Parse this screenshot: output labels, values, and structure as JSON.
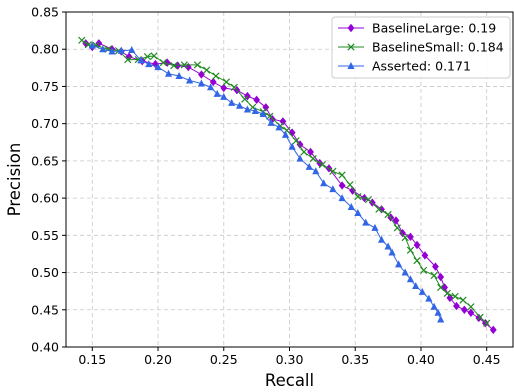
{
  "chart_data": {
    "type": "line",
    "title": "",
    "xlabel": "Recall",
    "ylabel": "Precision",
    "xlim": [
      0.13,
      0.47
    ],
    "ylim": [
      0.4,
      0.85
    ],
    "x_ticks": [
      0.15,
      0.2,
      0.25,
      0.3,
      0.35,
      0.4,
      0.45
    ],
    "x_tick_labels": [
      "0.15",
      "0.20",
      "0.25",
      "0.30",
      "0.35",
      "0.40",
      "0.45"
    ],
    "y_ticks": [
      0.4,
      0.45,
      0.5,
      0.55,
      0.6,
      0.65,
      0.7,
      0.75,
      0.8,
      0.85
    ],
    "y_tick_labels": [
      "0.40",
      "0.45",
      "0.50",
      "0.55",
      "0.60",
      "0.65",
      "0.70",
      "0.75",
      "0.80",
      "0.85"
    ],
    "grid": true,
    "legend_position": "top-right",
    "series": [
      {
        "name": "BaselineLarge: 0.19",
        "color": "#9400D3",
        "marker": "diamond",
        "points": [
          [
            0.145,
            0.808
          ],
          [
            0.15,
            0.803
          ],
          [
            0.155,
            0.808
          ],
          [
            0.165,
            0.8
          ],
          [
            0.172,
            0.797
          ],
          [
            0.178,
            0.79
          ],
          [
            0.188,
            0.784
          ],
          [
            0.198,
            0.78
          ],
          [
            0.207,
            0.782
          ],
          [
            0.215,
            0.778
          ],
          [
            0.223,
            0.776
          ],
          [
            0.233,
            0.766
          ],
          [
            0.242,
            0.756
          ],
          [
            0.25,
            0.748
          ],
          [
            0.26,
            0.745
          ],
          [
            0.268,
            0.737
          ],
          [
            0.275,
            0.732
          ],
          [
            0.282,
            0.722
          ],
          [
            0.287,
            0.706
          ],
          [
            0.295,
            0.703
          ],
          [
            0.302,
            0.688
          ],
          [
            0.308,
            0.672
          ],
          [
            0.316,
            0.662
          ],
          [
            0.323,
            0.647
          ],
          [
            0.33,
            0.64
          ],
          [
            0.34,
            0.617
          ],
          [
            0.348,
            0.61
          ],
          [
            0.357,
            0.6
          ],
          [
            0.363,
            0.594
          ],
          [
            0.37,
            0.585
          ],
          [
            0.377,
            0.574
          ],
          [
            0.381,
            0.57
          ],
          [
            0.386,
            0.553
          ],
          [
            0.392,
            0.548
          ],
          [
            0.397,
            0.537
          ],
          [
            0.403,
            0.523
          ],
          [
            0.411,
            0.508
          ],
          [
            0.415,
            0.494
          ],
          [
            0.418,
            0.48
          ],
          [
            0.422,
            0.466
          ],
          [
            0.427,
            0.455
          ],
          [
            0.433,
            0.45
          ],
          [
            0.438,
            0.446
          ],
          [
            0.444,
            0.439
          ],
          [
            0.449,
            0.432
          ],
          [
            0.455,
            0.423
          ]
        ]
      },
      {
        "name": "BaselineSmall: 0.184",
        "color": "#228B22",
        "marker": "x",
        "points": [
          [
            0.142,
            0.812
          ],
          [
            0.147,
            0.806
          ],
          [
            0.153,
            0.805
          ],
          [
            0.162,
            0.8
          ],
          [
            0.17,
            0.798
          ],
          [
            0.177,
            0.786
          ],
          [
            0.185,
            0.786
          ],
          [
            0.192,
            0.79
          ],
          [
            0.197,
            0.791
          ],
          [
            0.204,
            0.782
          ],
          [
            0.212,
            0.778
          ],
          [
            0.22,
            0.779
          ],
          [
            0.23,
            0.779
          ],
          [
            0.237,
            0.772
          ],
          [
            0.244,
            0.764
          ],
          [
            0.252,
            0.756
          ],
          [
            0.258,
            0.749
          ],
          [
            0.266,
            0.733
          ],
          [
            0.272,
            0.722
          ],
          [
            0.28,
            0.716
          ],
          [
            0.285,
            0.71
          ],
          [
            0.293,
            0.697
          ],
          [
            0.298,
            0.691
          ],
          [
            0.305,
            0.677
          ],
          [
            0.311,
            0.662
          ],
          [
            0.318,
            0.653
          ],
          [
            0.325,
            0.645
          ],
          [
            0.333,
            0.636
          ],
          [
            0.34,
            0.631
          ],
          [
            0.346,
            0.618
          ],
          [
            0.352,
            0.602
          ],
          [
            0.36,
            0.598
          ],
          [
            0.368,
            0.585
          ],
          [
            0.375,
            0.578
          ],
          [
            0.382,
            0.56
          ],
          [
            0.388,
            0.547
          ],
          [
            0.392,
            0.53
          ],
          [
            0.397,
            0.516
          ],
          [
            0.402,
            0.503
          ],
          [
            0.41,
            0.496
          ],
          [
            0.415,
            0.48
          ],
          [
            0.42,
            0.472
          ],
          [
            0.426,
            0.468
          ],
          [
            0.432,
            0.463
          ],
          [
            0.438,
            0.454
          ],
          [
            0.445,
            0.44
          ],
          [
            0.45,
            0.432
          ]
        ]
      },
      {
        "name": "Asserted: 0.171",
        "color": "#3366E6",
        "marker": "triangle",
        "points": [
          [
            0.15,
            0.805
          ],
          [
            0.158,
            0.8
          ],
          [
            0.165,
            0.797
          ],
          [
            0.172,
            0.798
          ],
          [
            0.18,
            0.799
          ],
          [
            0.187,
            0.785
          ],
          [
            0.193,
            0.78
          ],
          [
            0.2,
            0.776
          ],
          [
            0.208,
            0.767
          ],
          [
            0.216,
            0.764
          ],
          [
            0.224,
            0.758
          ],
          [
            0.233,
            0.754
          ],
          [
            0.24,
            0.749
          ],
          [
            0.245,
            0.74
          ],
          [
            0.25,
            0.736
          ],
          [
            0.256,
            0.728
          ],
          [
            0.262,
            0.724
          ],
          [
            0.268,
            0.719
          ],
          [
            0.274,
            0.717
          ],
          [
            0.28,
            0.713
          ],
          [
            0.286,
            0.701
          ],
          [
            0.292,
            0.695
          ],
          [
            0.297,
            0.685
          ],
          [
            0.302,
            0.669
          ],
          [
            0.308,
            0.653
          ],
          [
            0.315,
            0.642
          ],
          [
            0.32,
            0.636
          ],
          [
            0.326,
            0.62
          ],
          [
            0.333,
            0.612
          ],
          [
            0.34,
            0.6
          ],
          [
            0.347,
            0.588
          ],
          [
            0.352,
            0.58
          ],
          [
            0.358,
            0.567
          ],
          [
            0.365,
            0.56
          ],
          [
            0.37,
            0.544
          ],
          [
            0.375,
            0.535
          ],
          [
            0.378,
            0.527
          ],
          [
            0.383,
            0.511
          ],
          [
            0.388,
            0.5
          ],
          [
            0.392,
            0.491
          ],
          [
            0.396,
            0.482
          ],
          [
            0.401,
            0.474
          ],
          [
            0.406,
            0.465
          ],
          [
            0.41,
            0.454
          ],
          [
            0.413,
            0.446
          ],
          [
            0.415,
            0.437
          ]
        ]
      }
    ]
  }
}
